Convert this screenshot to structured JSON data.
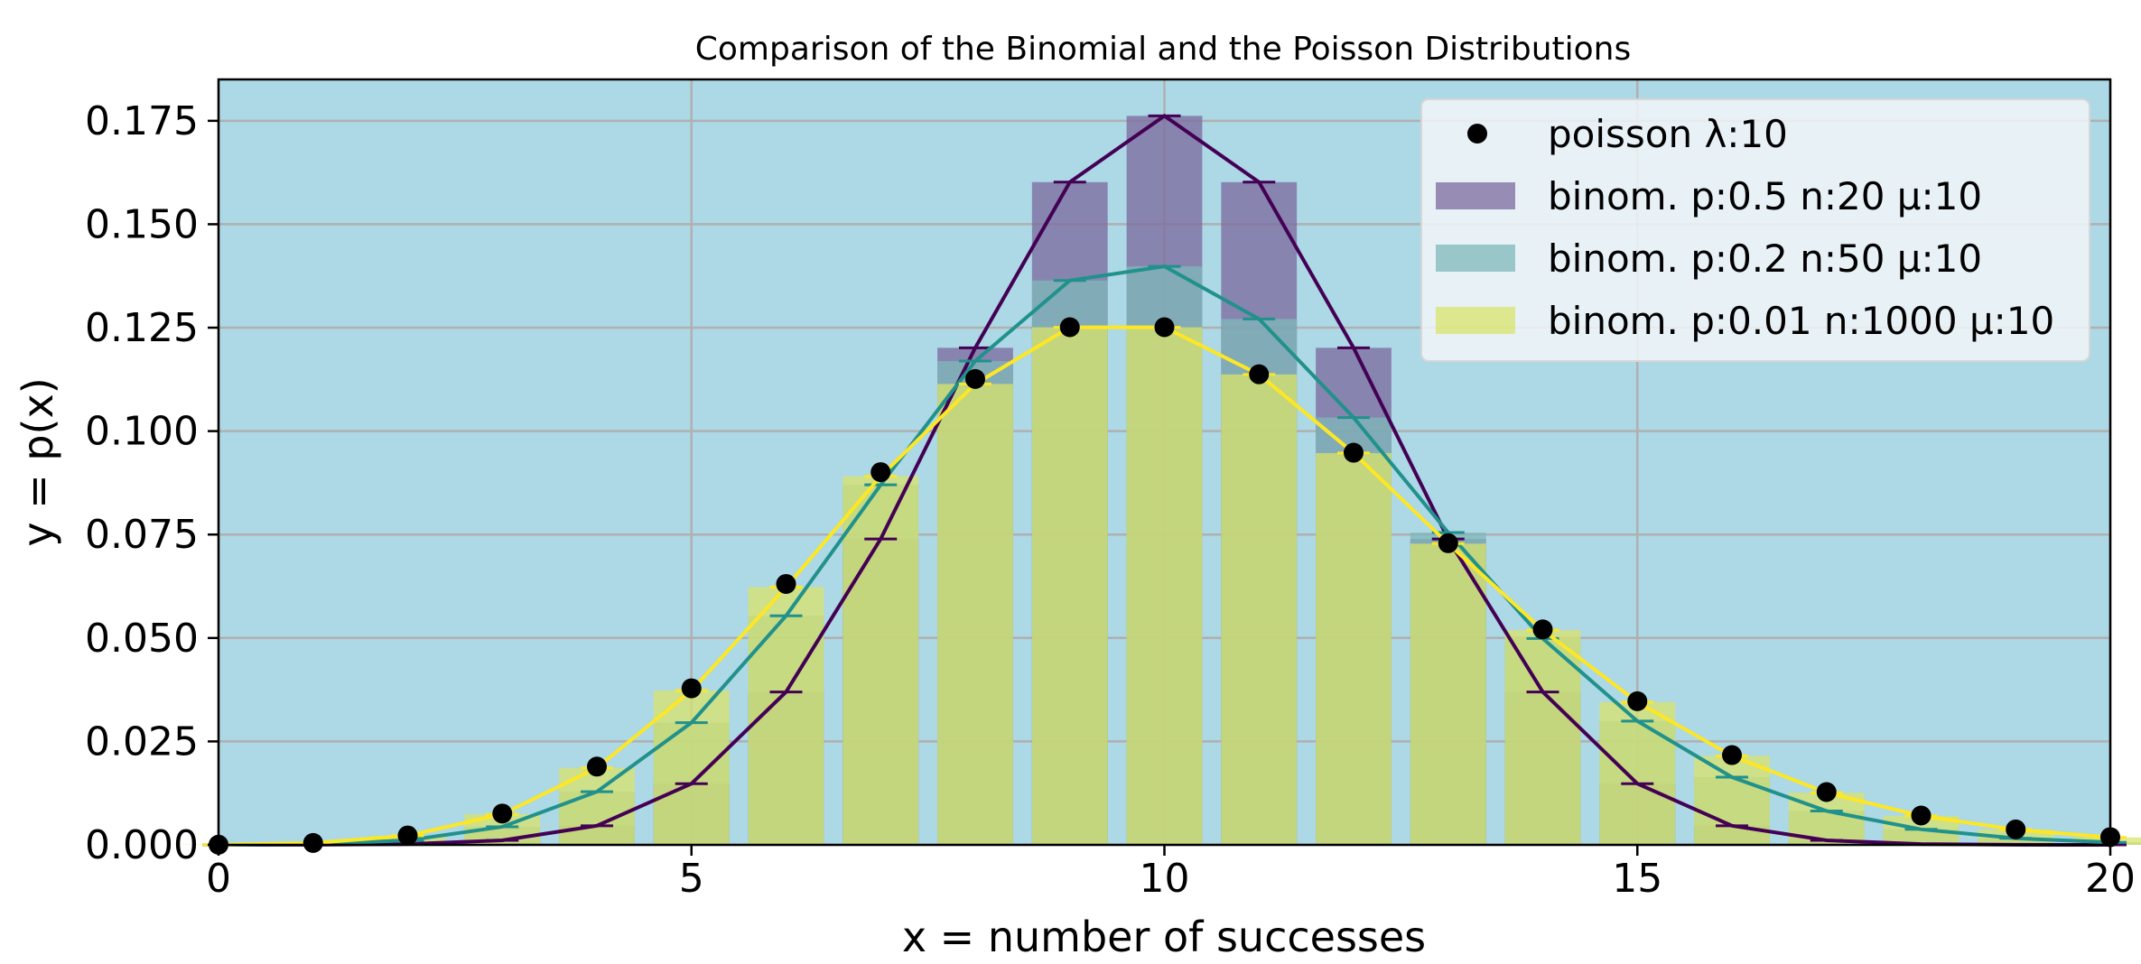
{
  "chart_data": {
    "type": "bar",
    "title": "Comparison of the Binomial and the Poisson Distributions",
    "xlabel": "x = number of successes",
    "ylabel": "y = p(x)",
    "xlim": [
      0,
      20
    ],
    "ylim": [
      0,
      0.185
    ],
    "xticks": [
      0,
      5,
      10,
      15,
      20
    ],
    "yticks": [
      0.0,
      0.025,
      0.05,
      0.075,
      0.1,
      0.125,
      0.15,
      0.175
    ],
    "grid": true,
    "legend_position": "top-right",
    "background_color": "#add8e6",
    "x": [
      0,
      1,
      2,
      3,
      4,
      5,
      6,
      7,
      8,
      9,
      10,
      11,
      12,
      13,
      14,
      15,
      16,
      17,
      18,
      19,
      20
    ],
    "series": [
      {
        "name": "binom. p:0.5 n:20 μ:10",
        "kind": "bar+line",
        "color": "#440154",
        "bar_color": "#7b6a9d",
        "values": [
          1e-06,
          1.9e-05,
          0.000181,
          0.001087,
          0.004621,
          0.014786,
          0.036964,
          0.073929,
          0.120134,
          0.160179,
          0.176197,
          0.160179,
          0.120134,
          0.073929,
          0.036964,
          0.014786,
          0.004621,
          0.001087,
          0.000181,
          1.9e-05,
          1e-06
        ]
      },
      {
        "name": "binom. p:0.2 n:50 μ:10",
        "kind": "bar+line",
        "color": "#21918c",
        "bar_color": "#7fb8b9",
        "values": [
          1.4e-05,
          0.000178,
          0.001093,
          0.004371,
          0.01284,
          0.029531,
          0.055371,
          0.087012,
          0.116922,
          0.136409,
          0.139819,
          0.127108,
          0.103275,
          0.07547,
          0.049864,
          0.029919,
          0.016362,
          0.008181,
          0.00375,
          0.001579,
          0.000612
        ]
      },
      {
        "name": "binom. p:0.01 n:1000 μ:10",
        "kind": "bar+line",
        "color": "#fde725",
        "bar_color": "#d9e36a",
        "values": [
          4.3e-05,
          0.000436,
          0.0022,
          0.0074,
          0.0186,
          0.0373,
          0.0623,
          0.0891,
          0.1114,
          0.1251,
          0.1251,
          0.1137,
          0.0947,
          0.0728,
          0.0519,
          0.0345,
          0.0215,
          0.0126,
          0.007,
          0.0037,
          0.0018
        ]
      },
      {
        "name": "poisson λ:10",
        "kind": "scatter",
        "color": "#000000",
        "values": [
          4.5e-05,
          0.000454,
          0.00227,
          0.007567,
          0.018917,
          0.037833,
          0.063055,
          0.090079,
          0.112599,
          0.12511,
          0.12511,
          0.113736,
          0.09478,
          0.072908,
          0.052077,
          0.034718,
          0.021699,
          0.012764,
          0.007091,
          0.003732,
          0.001866
        ]
      }
    ]
  }
}
